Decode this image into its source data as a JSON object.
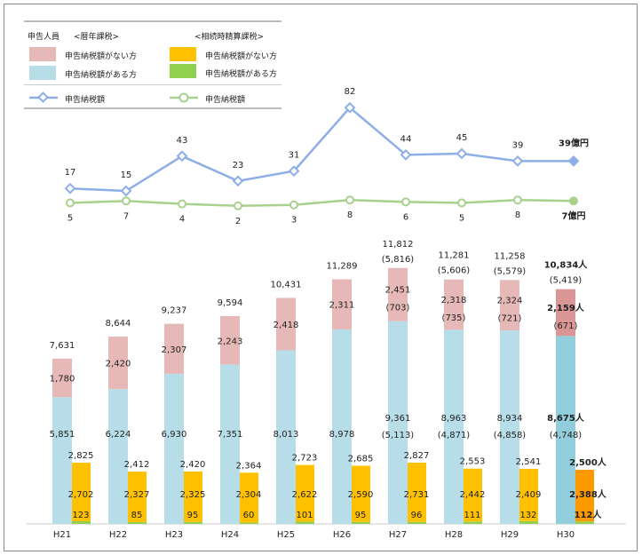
{
  "legend": {
    "people_label": "申告人員",
    "annual_label": "<暦年課税>",
    "settlement_label": "<相続時精算課税>",
    "annual_no_tax": "申告納税額がない方",
    "annual_with_tax": "申告納税額がある方",
    "settle_no_tax": "申告納税額がない方",
    "settle_with_tax": "申告納税額がある方",
    "tax_amount_blue": "申告納税額",
    "tax_amount_green": "申告納税額"
  },
  "colors": {
    "pink": "#e6b8b7",
    "blue": "#b7dde8",
    "orange": "#ffc000",
    "green": "#92d050",
    "line_blue": "#8eaee8",
    "line_green": "#a9d18e",
    "pink_h30": "#d99694",
    "blue_h30": "#92cddc",
    "orange_h30": "#ff9900"
  },
  "chart_data": {
    "type": "bar+line",
    "categories": [
      "H21",
      "H22",
      "H23",
      "H24",
      "H25",
      "H26",
      "H27",
      "H28",
      "H29",
      "H30"
    ],
    "series": [
      {
        "name": "暦年課税 申告納税額がない方",
        "values": [
          1780,
          2420,
          2307,
          2243,
          2418,
          2311,
          2451,
          2318,
          2324,
          2159
        ]
      },
      {
        "name": "暦年課税 申告納税額がある方",
        "values": [
          5851,
          6224,
          6930,
          7351,
          8013,
          8978,
          9361,
          8963,
          8934,
          8675
        ]
      },
      {
        "name": "相続時精算課税 申告納税額がない方",
        "values": [
          2702,
          2327,
          2325,
          2304,
          2622,
          2590,
          2731,
          2442,
          2409,
          2388
        ]
      },
      {
        "name": "相続時精算課税 申告納税額がある方",
        "values": [
          123,
          85,
          95,
          60,
          101,
          95,
          96,
          111,
          132,
          112
        ]
      },
      {
        "name": "暦年課税 申告納税額(億円)",
        "type": "line",
        "values": [
          17,
          15,
          43,
          23,
          31,
          82,
          44,
          45,
          39,
          39
        ]
      },
      {
        "name": "相続時精算課税 申告納税額(億円)",
        "type": "line",
        "values": [
          5,
          7,
          4,
          2,
          3,
          8,
          6,
          5,
          8,
          7
        ]
      }
    ],
    "labels": {
      "total": [
        "7,631",
        "8,644",
        "9,237",
        "9,594",
        "10,431",
        "11,289",
        "11,812",
        "11,281",
        "11,258",
        "10,834人"
      ],
      "total_paren": [
        "",
        "",
        "",
        "",
        "",
        "",
        "(5,816)",
        "(5,606)",
        "(5,579)",
        "(5,419)"
      ],
      "pink": [
        "1,780",
        "2,420",
        "2,307",
        "2,243",
        "2,418",
        "2,311",
        "2,451",
        "2,318",
        "2,324",
        "2,159人"
      ],
      "pink_paren": [
        "",
        "",
        "",
        "",
        "",
        "",
        "(703)",
        "(735)",
        "(721)",
        "(671)"
      ],
      "blue": [
        "5,851",
        "6,224",
        "6,930",
        "7,351",
        "8,013",
        "8,978",
        "9,361",
        "8,963",
        "8,934",
        "8,675人"
      ],
      "blue_paren": [
        "",
        "",
        "",
        "",
        "",
        "",
        "(5,113)",
        "(4,871)",
        "(4,858)",
        "(4,748)"
      ],
      "settle_total": [
        "2,825",
        "2,412",
        "2,420",
        "2,364",
        "2,723",
        "2,685",
        "2,827",
        "2,553",
        "2,541",
        "2,500人"
      ],
      "orange": [
        "2,702",
        "2,327",
        "2,325",
        "2,304",
        "2,622",
        "2,590",
        "2,731",
        "2,442",
        "2,409",
        "2,388人"
      ],
      "green": [
        "123",
        "85",
        "95",
        "60",
        "101",
        "95",
        "96",
        "111",
        "132",
        "112人"
      ],
      "line_blue": [
        "17",
        "15",
        "43",
        "23",
        "31",
        "82",
        "44",
        "45",
        "39",
        "39億円"
      ],
      "line_green": [
        "5",
        "7",
        "4",
        "2",
        "3",
        "8",
        "6",
        "5",
        "8",
        "7億円"
      ]
    }
  }
}
